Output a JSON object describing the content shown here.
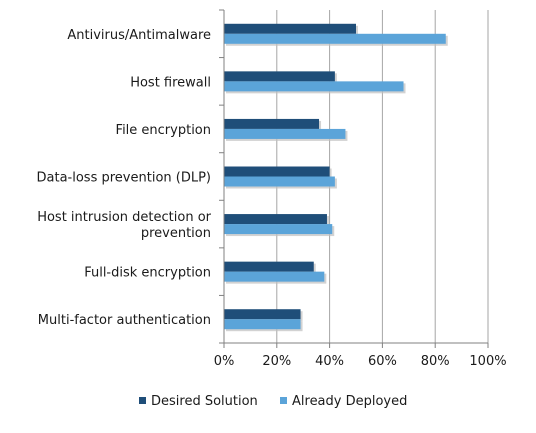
{
  "chart_data": {
    "type": "bar",
    "orientation": "horizontal",
    "categories": [
      [
        "Antivirus/Antimalware"
      ],
      [
        "Host firewall"
      ],
      [
        "File encryption"
      ],
      [
        "Data-loss prevention (DLP)"
      ],
      [
        "Host intrusion detection or",
        "prevention"
      ],
      [
        "Full-disk encryption"
      ],
      [
        "Multi-factor authentication"
      ]
    ],
    "series": [
      {
        "name": "Desired Solution",
        "color": "#1f4e79",
        "values": [
          50,
          42,
          36,
          40,
          39,
          34,
          29
        ]
      },
      {
        "name": "Already Deployed",
        "color": "#5ba4d9",
        "values": [
          84,
          68,
          46,
          42,
          41,
          38,
          29
        ]
      }
    ],
    "xlim": [
      0,
      100
    ],
    "xticks": [
      "0%",
      "20%",
      "40%",
      "60%",
      "80%",
      "100%"
    ],
    "grid": true,
    "legend_position": "bottom"
  }
}
